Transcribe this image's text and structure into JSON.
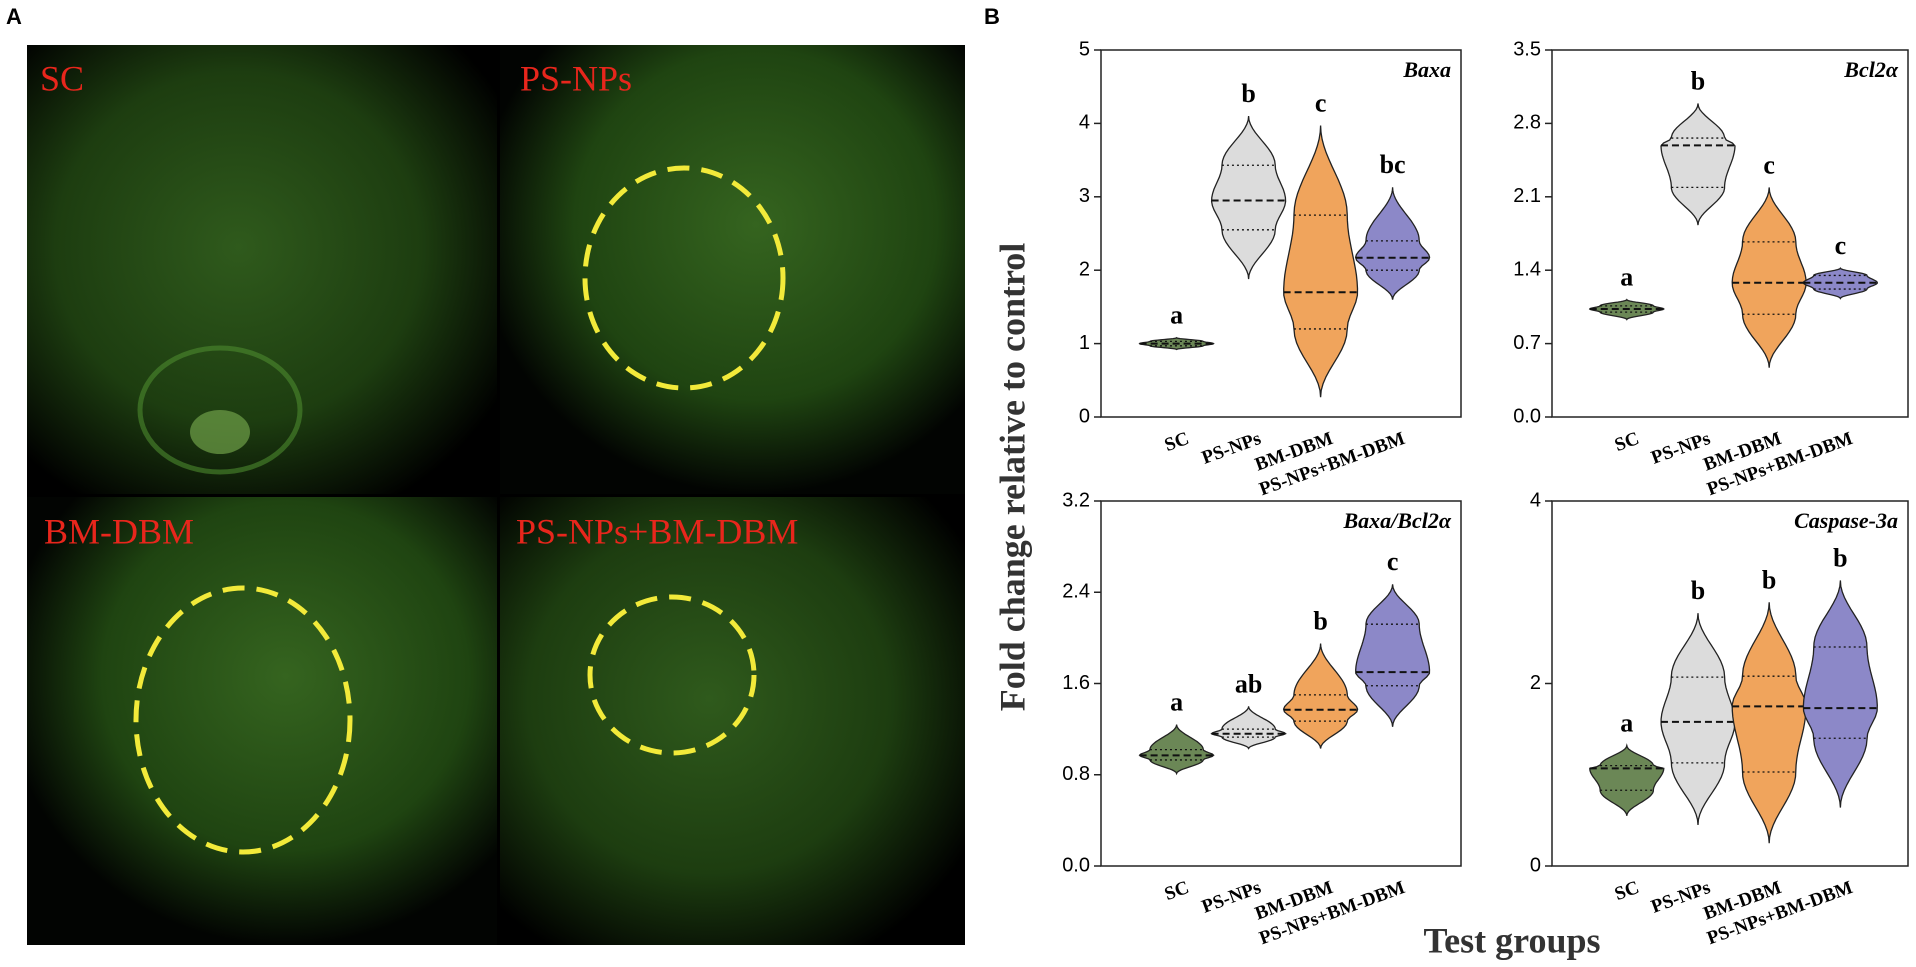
{
  "panel_a": {
    "label": "A",
    "images": [
      "SC",
      "PS-NPs",
      "BM-DBM",
      "PS-NPs+BM-DBM"
    ]
  },
  "panel_b": {
    "label": "B",
    "ylabel": "Fold change relative to control",
    "xlabel": "Test groups"
  },
  "chart_data": [
    {
      "type": "violin",
      "title": "Baxa",
      "categories": [
        "SC",
        "PS-NPs",
        "BM-DBM",
        "PS-NPs+BM-DBM"
      ],
      "colors": [
        "#6b8756",
        "#dcdcdc",
        "#f0a45c",
        "#8c88c8"
      ],
      "median": [
        1.0,
        2.95,
        1.7,
        2.17
      ],
      "q1": [
        0.97,
        2.55,
        1.2,
        2.0
      ],
      "q3": [
        1.03,
        3.43,
        2.75,
        2.4
      ],
      "min": [
        0.92,
        1.88,
        0.27,
        1.6
      ],
      "max": [
        1.08,
        4.1,
        3.97,
        3.13
      ],
      "annotations": [
        "a",
        "b",
        "c",
        "bc"
      ],
      "ylim": [
        0,
        5
      ],
      "yticks": [
        0,
        1,
        2,
        3,
        4,
        5
      ]
    },
    {
      "type": "violin",
      "title": "Bcl2α",
      "categories": [
        "SC",
        "PS-NPs",
        "BM-DBM",
        "PS-NPs+BM-DBM"
      ],
      "colors": [
        "#6b8756",
        "#dcdcdc",
        "#f0a45c",
        "#8c88c8"
      ],
      "median": [
        1.03,
        2.59,
        1.28,
        1.28
      ],
      "q1": [
        1.0,
        2.19,
        0.98,
        1.22
      ],
      "q3": [
        1.06,
        2.66,
        1.67,
        1.35
      ],
      "min": [
        0.93,
        1.83,
        0.47,
        1.13
      ],
      "max": [
        1.12,
        2.99,
        2.19,
        1.42
      ],
      "annotations": [
        "a",
        "b",
        "c",
        "c"
      ],
      "ylim": [
        0,
        3.5
      ],
      "yticks": [
        {
          "value": 0,
          "label": "0.0"
        },
        0.7,
        1.4,
        2.1,
        2.8,
        3.5
      ]
    },
    {
      "type": "violin",
      "title": "Baxa/Bcl2α",
      "categories": [
        "SC",
        "PS-NPs",
        "BM-DBM",
        "PS-NPs+BM-DBM"
      ],
      "colors": [
        "#6b8756",
        "#dcdcdc",
        "#f0a45c",
        "#8c88c8"
      ],
      "median": [
        0.97,
        1.16,
        1.37,
        1.7
      ],
      "q1": [
        0.93,
        1.13,
        1.27,
        1.58
      ],
      "q3": [
        1.02,
        1.2,
        1.5,
        2.12
      ],
      "min": [
        0.81,
        1.03,
        1.03,
        1.22
      ],
      "max": [
        1.24,
        1.4,
        1.95,
        2.47
      ],
      "annotations": [
        "a",
        "ab",
        "b",
        "c"
      ],
      "ylim": [
        0,
        3.2
      ],
      "yticks": [
        {
          "value": 0,
          "label": "0.0"
        },
        0.8,
        1.6,
        2.4,
        3.2
      ]
    },
    {
      "type": "violin",
      "title": "Caspase-3a",
      "categories": [
        "SC",
        "PS-NPs",
        "BM-DBM",
        "PS-NPs+BM-DBM"
      ],
      "colors": [
        "#6b8756",
        "#dcdcdc",
        "#f0a45c",
        "#8c88c8"
      ],
      "median": [
        1.07,
        1.58,
        1.75,
        1.73
      ],
      "q1": [
        0.83,
        1.13,
        1.03,
        1.4
      ],
      "q3": [
        1.1,
        2.07,
        2.08,
        2.4
      ],
      "min": [
        0.55,
        0.45,
        0.25,
        0.64
      ],
      "max": [
        1.32,
        2.77,
        2.89,
        3.13
      ],
      "annotations": [
        "a",
        "b",
        "b",
        "b"
      ],
      "ylim": [
        0,
        4
      ],
      "yticks": [
        0,
        2,
        4
      ]
    }
  ]
}
